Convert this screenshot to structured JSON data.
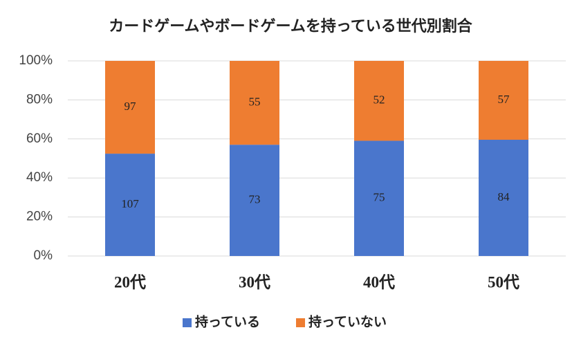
{
  "chart_data": {
    "type": "bar",
    "stack": "percent",
    "title": "カードゲームやボードゲームを持っている世代別割合",
    "categories": [
      "20代",
      "30代",
      "40代",
      "50代"
    ],
    "series": [
      {
        "name": "持っている",
        "color": "#4a76cc",
        "values": [
          107,
          73,
          75,
          84
        ]
      },
      {
        "name": "持っていない",
        "color": "#ee7d31",
        "values": [
          97,
          55,
          52,
          57
        ]
      }
    ],
    "ylim": [
      0,
      100
    ],
    "yticks": [
      {
        "value": 0,
        "label": "0%"
      },
      {
        "value": 20,
        "label": "20%"
      },
      {
        "value": 40,
        "label": "40%"
      },
      {
        "value": 60,
        "label": "60%"
      },
      {
        "value": 80,
        "label": "80%"
      },
      {
        "value": 100,
        "label": "100%"
      }
    ],
    "grid": true,
    "legend": "bottom"
  }
}
